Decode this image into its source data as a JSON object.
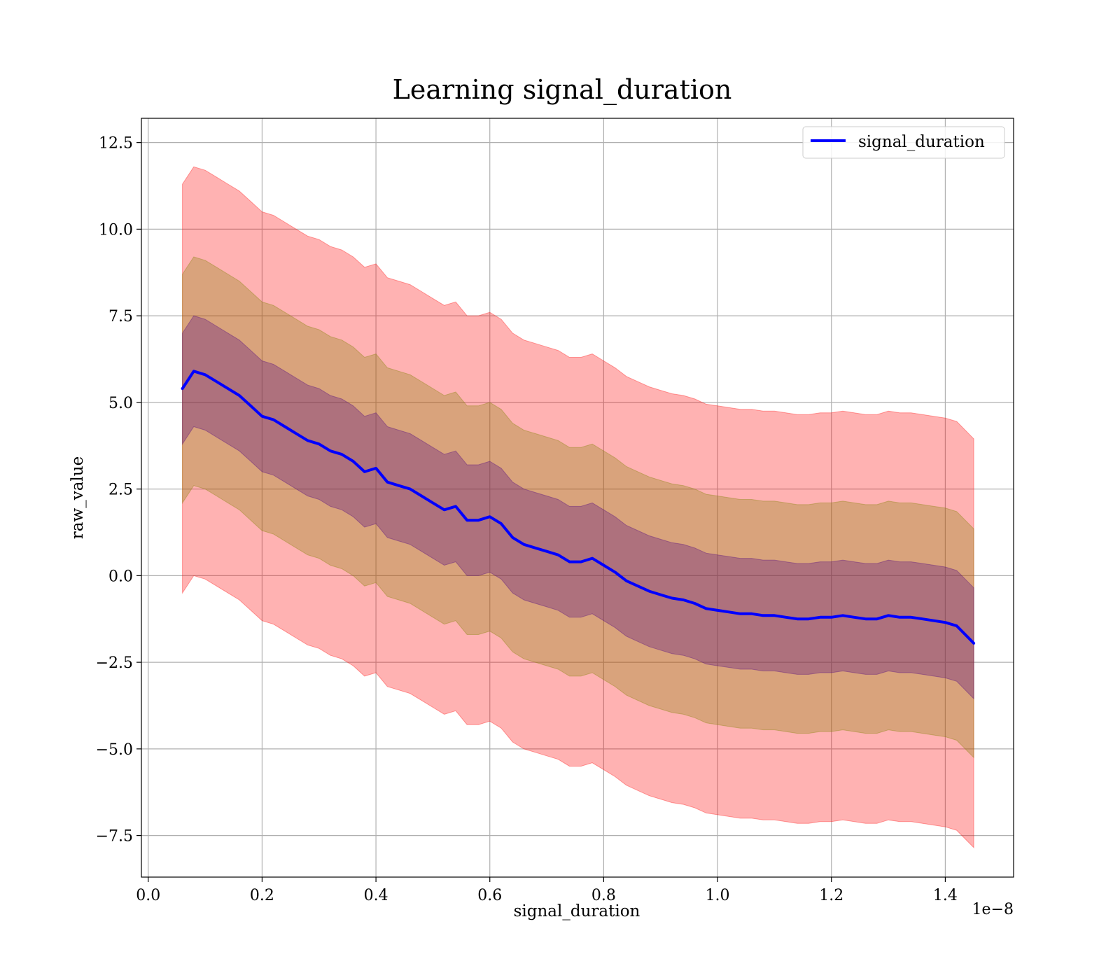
{
  "chart_data": {
    "type": "area",
    "title": "Learning signal_duration",
    "xlabel": "signal_duration",
    "ylabel": "raw_value",
    "x_offset_label": "1e−8",
    "xlim": [
      -0.012,
      1.52
    ],
    "ylim": [
      -8.7,
      13.2
    ],
    "xticks": [
      0.0,
      0.2,
      0.4,
      0.6,
      0.8,
      1.0,
      1.2,
      1.4
    ],
    "xtick_labels": [
      "0.0",
      "0.2",
      "0.4",
      "0.6",
      "0.8",
      "1.0",
      "1.2",
      "1.4"
    ],
    "yticks": [
      -7.5,
      -5.0,
      -2.5,
      0.0,
      2.5,
      5.0,
      7.5,
      10.0,
      12.5
    ],
    "ytick_labels": [
      "−7.5",
      "−5.0",
      "−2.5",
      "0.0",
      "2.5",
      "5.0",
      "7.5",
      "10.0",
      "12.5"
    ],
    "grid": true,
    "legend_position": "top-right",
    "colors": {
      "line": "#0000ff",
      "band_outer": "#ff0000",
      "band_mid": "#808000",
      "band_inner": "#4b0082"
    },
    "series": [
      {
        "name": "signal_duration",
        "x": [
          0.06,
          0.08,
          0.1,
          0.12,
          0.14,
          0.16,
          0.18,
          0.2,
          0.22,
          0.24,
          0.26,
          0.28,
          0.3,
          0.32,
          0.34,
          0.36,
          0.38,
          0.4,
          0.42,
          0.44,
          0.46,
          0.48,
          0.5,
          0.52,
          0.54,
          0.56,
          0.58,
          0.6,
          0.62,
          0.64,
          0.66,
          0.68,
          0.7,
          0.72,
          0.74,
          0.76,
          0.78,
          0.8,
          0.82,
          0.84,
          0.86,
          0.88,
          0.9,
          0.92,
          0.94,
          0.96,
          0.98,
          1.0,
          1.02,
          1.04,
          1.06,
          1.08,
          1.1,
          1.12,
          1.14,
          1.16,
          1.18,
          1.2,
          1.22,
          1.24,
          1.26,
          1.28,
          1.3,
          1.32,
          1.34,
          1.36,
          1.38,
          1.4,
          1.42,
          1.45
        ],
        "y": [
          5.4,
          5.9,
          5.8,
          5.6,
          5.4,
          5.2,
          4.9,
          4.6,
          4.5,
          4.3,
          4.1,
          3.9,
          3.8,
          3.6,
          3.5,
          3.3,
          3.0,
          3.1,
          2.7,
          2.6,
          2.5,
          2.3,
          2.1,
          1.9,
          2.0,
          1.6,
          1.6,
          1.7,
          1.5,
          1.1,
          0.9,
          0.8,
          0.7,
          0.6,
          0.4,
          0.4,
          0.5,
          0.3,
          0.1,
          -0.15,
          -0.3,
          -0.45,
          -0.55,
          -0.65,
          -0.7,
          -0.8,
          -0.95,
          -1.0,
          -1.05,
          -1.1,
          -1.1,
          -1.15,
          -1.15,
          -1.2,
          -1.25,
          -1.25,
          -1.2,
          -1.2,
          -1.15,
          -1.2,
          -1.25,
          -1.25,
          -1.15,
          -1.2,
          -1.2,
          -1.25,
          -1.3,
          -1.35,
          -1.45,
          -1.95
        ],
        "band_half_widths_std": [
          1.6,
          3.3,
          5.9
        ]
      }
    ]
  }
}
